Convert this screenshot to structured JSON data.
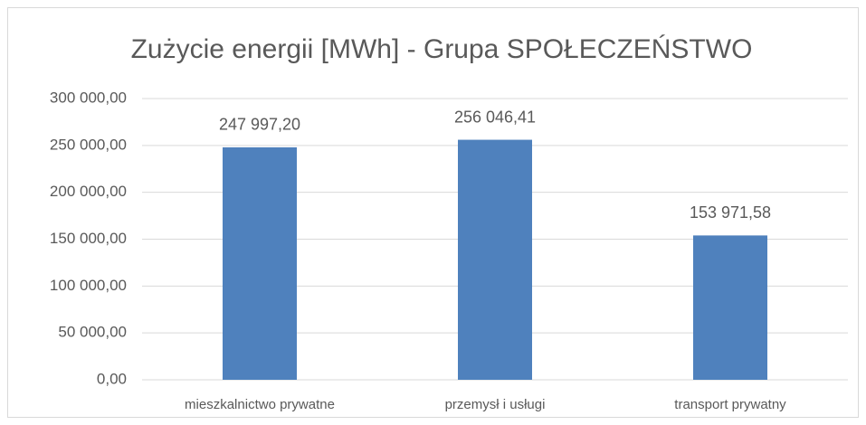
{
  "chart_data": {
    "type": "bar",
    "title": "Zużycie energii [MWh] - Grupa SPOŁECZEŃSTWO",
    "categories": [
      "mieszkalnictwo prywatne",
      "przemysł i usługi",
      "transport prywatny"
    ],
    "values": [
      247997.2,
      256046.41,
      153971.58
    ],
    "value_labels": [
      "247 997,20",
      "256 046,41",
      "153 971,58"
    ],
    "color": "#4f81bd",
    "ylim": [
      0,
      300000
    ],
    "yticks": [
      {
        "value": 0,
        "label": "0,00"
      },
      {
        "value": 50000,
        "label": "50 000,00"
      },
      {
        "value": 100000,
        "label": "100 000,00"
      },
      {
        "value": 150000,
        "label": "150 000,00"
      },
      {
        "value": 200000,
        "label": "200 000,00"
      },
      {
        "value": 250000,
        "label": "250 000,00"
      },
      {
        "value": 300000,
        "label": "300 000,00"
      }
    ],
    "grid": true
  }
}
